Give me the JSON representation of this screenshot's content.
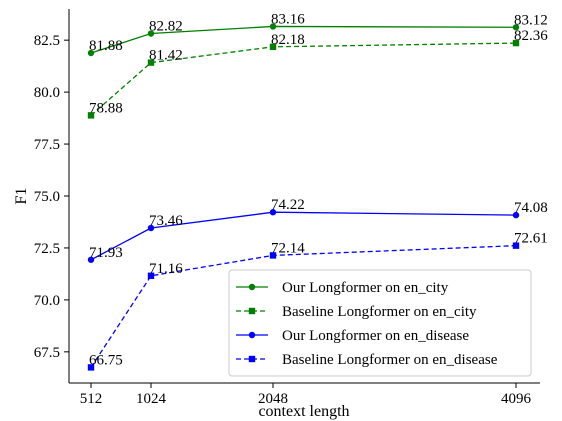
{
  "chart_data": {
    "type": "line",
    "title": "",
    "xlabel": "context length",
    "ylabel": "F1",
    "x": [
      512,
      1024,
      2048,
      4096
    ],
    "x_tick_labels": [
      "512",
      "1024",
      "2048",
      "4096"
    ],
    "ylim": [
      66.0,
      84.0
    ],
    "y_ticks": [
      67.5,
      70.0,
      72.5,
      75.0,
      77.5,
      80.0,
      82.5
    ],
    "y_tick_labels": [
      "67.5",
      "70.0",
      "72.5",
      "75.0",
      "77.5",
      "80.0",
      "82.5"
    ],
    "grid": false,
    "legend_position": "lower-right",
    "series": [
      {
        "name": "Our Longformer on en_city",
        "values": [
          81.88,
          82.82,
          83.16,
          83.12
        ],
        "labels": [
          "81.88",
          "82.82",
          "83.16",
          "83.12"
        ],
        "color": "#008000",
        "linestyle": "solid",
        "marker": "circle"
      },
      {
        "name": "Baseline Longformer on en_city",
        "values": [
          78.88,
          81.42,
          82.18,
          82.36
        ],
        "labels": [
          "78.88",
          "81.42",
          "82.18",
          "82.36"
        ],
        "color": "#008000",
        "linestyle": "dashed",
        "marker": "square"
      },
      {
        "name": "Our Longformer on en_disease",
        "values": [
          71.93,
          73.46,
          74.22,
          74.08
        ],
        "labels": [
          "71.93",
          "73.46",
          "74.22",
          "74.08"
        ],
        "color": "#0000ff",
        "linestyle": "solid",
        "marker": "circle"
      },
      {
        "name": "Baseline Longformer on en_disease",
        "values": [
          66.75,
          71.16,
          72.14,
          72.61
        ],
        "labels": [
          "66.75",
          "71.16",
          "72.14",
          "72.61"
        ],
        "color": "#0000ff",
        "linestyle": "dashed",
        "marker": "square"
      }
    ]
  }
}
